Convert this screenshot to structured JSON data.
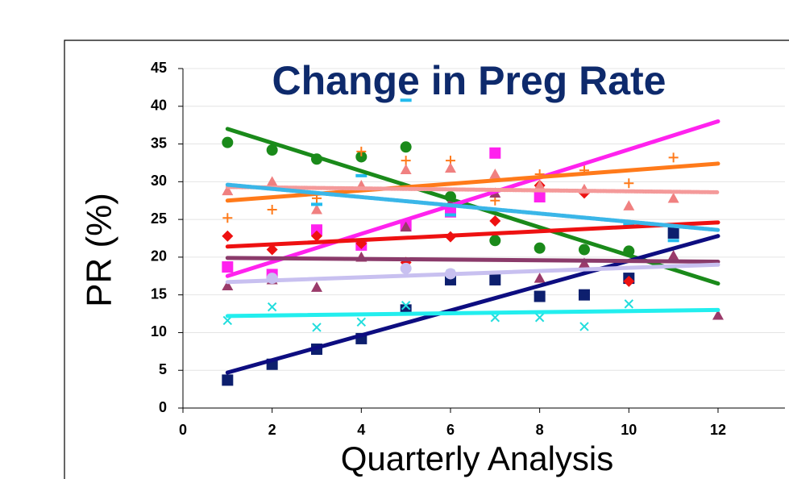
{
  "chart_data": {
    "type": "scatter",
    "title": "Change in Preg Rate",
    "x_label": "Quarterly Analysis",
    "y_label": "PR (%)",
    "xlim": [
      0,
      13.5
    ],
    "ylim": [
      0,
      45
    ],
    "xticks": [
      0,
      2,
      4,
      6,
      8,
      10,
      12
    ],
    "yticks": [
      0,
      5,
      10,
      15,
      20,
      25,
      30,
      35,
      40,
      45
    ],
    "grid": true,
    "series": [
      {
        "color": "#1a8a1a",
        "marker": "circle",
        "x": [
          1,
          2,
          3,
          4,
          5,
          6,
          7,
          8,
          9,
          10
        ],
        "values": [
          35.2,
          34.2,
          33,
          33.3,
          34.6,
          28,
          22.2,
          21.2,
          21,
          20.8
        ],
        "trend": {
          "x": [
            1,
            12
          ],
          "y": [
            37,
            16.5
          ]
        },
        "trend_color": "#1a8a1a",
        "trend_style": "solid"
      },
      {
        "color": "#0d1f6e",
        "marker": "square",
        "x": [
          1,
          2,
          3,
          4,
          5,
          6,
          7,
          8,
          9,
          10,
          11
        ],
        "values": [
          3.7,
          5.8,
          7.8,
          9.2,
          13,
          17,
          17,
          14.8,
          15,
          17.2,
          23.2
        ],
        "trend": {
          "x": [
            1,
            12
          ],
          "y": [
            4.7,
            22.8
          ]
        },
        "trend_color": "#0d0d80",
        "trend_style": "solid"
      },
      {
        "color": "#ff22ee",
        "marker": "square",
        "x": [
          1,
          2,
          3,
          4,
          5,
          6,
          7,
          8
        ],
        "values": [
          18.7,
          17.7,
          23.6,
          21.6,
          24.2,
          26,
          33.8,
          28
        ],
        "trend": {
          "x": [
            1,
            12
          ],
          "y": [
            17.5,
            38
          ]
        },
        "trend_color": "#ff22ee",
        "trend_style": "solid"
      },
      {
        "color": "#ff7a1a",
        "marker": "plus",
        "x": [
          1,
          2,
          3,
          4,
          5,
          6,
          7,
          8,
          9,
          10,
          11
        ],
        "values": [
          25.2,
          26.3,
          27.8,
          34,
          32.8,
          32.8,
          27.5,
          31,
          31.5,
          29.8,
          33.2
        ],
        "trend": {
          "x": [
            1,
            12
          ],
          "y": [
            27.5,
            32.4
          ]
        },
        "trend_color": "#ff7a1a",
        "trend_style": "solid"
      },
      {
        "color": "#ee1111",
        "marker": "diamond",
        "x": [
          1,
          2,
          3,
          4,
          5,
          6,
          7,
          8,
          9,
          10
        ],
        "values": [
          22.8,
          21,
          22.8,
          21.8,
          19.3,
          22.7,
          24.8,
          29.5,
          28.5,
          16.8
        ],
        "trend": {
          "x": [
            1,
            12
          ],
          "y": [
            21.4,
            24.6
          ]
        },
        "trend_color": "#ee1111",
        "trend_style": "solid"
      },
      {
        "color": "#f08080",
        "marker": "triangle",
        "x": [
          1,
          2,
          3,
          4,
          5,
          6,
          7,
          8,
          9,
          10,
          11
        ],
        "values": [
          28.8,
          30,
          26.3,
          29.5,
          31.6,
          31.8,
          31,
          29.5,
          29,
          26.8,
          27.8
        ],
        "trend": {
          "x": [
            1,
            12
          ],
          "y": [
            29.3,
            28.6
          ]
        },
        "trend_color": "#f49a9a",
        "trend_style": "dotted"
      },
      {
        "color": "#22dddd",
        "marker": "cross",
        "x": [
          1,
          2,
          3,
          4,
          5,
          6,
          7,
          8,
          9,
          10
        ],
        "values": [
          11.6,
          13.4,
          10.7,
          11.4,
          13.6,
          17.8,
          12,
          12,
          10.8,
          13.8
        ],
        "trend": {
          "x": [
            1,
            12
          ],
          "y": [
            12.2,
            13
          ]
        },
        "trend_color": "#22eeee",
        "trend_style": "solid"
      },
      {
        "color": "#22bbee",
        "marker": "dash",
        "x": [
          3,
          4,
          5,
          6,
          10,
          11
        ],
        "values": [
          27,
          30.8,
          40.8,
          25.6,
          24.4,
          22.2
        ],
        "trend": {
          "x": [
            1,
            12
          ],
          "y": [
            29.6,
            23.6
          ]
        },
        "trend_color": "#3ab6e8",
        "trend_style": "dotted"
      },
      {
        "color": "#9a3a6a",
        "marker": "triangle",
        "x": [
          1,
          2,
          3,
          4,
          5,
          6,
          7,
          8,
          9,
          11,
          12
        ],
        "values": [
          16.2,
          17,
          16,
          20,
          24,
          27.2,
          28.5,
          17.2,
          19.2,
          20.2,
          12.3
        ],
        "trend": {
          "x": [
            1,
            12
          ],
          "y": [
            19.9,
            19.4
          ]
        },
        "trend_color": "#8a3a6a",
        "trend_style": "solid"
      },
      {
        "color": "#c8c0f0",
        "marker": "circle",
        "x": [
          2,
          5,
          6
        ],
        "values": [
          17.2,
          18.5,
          17.8
        ],
        "trend": {
          "x": [
            1,
            12
          ],
          "y": [
            16.7,
            19
          ]
        },
        "trend_color": "#c8c0f0",
        "trend_style": "solid"
      }
    ]
  }
}
